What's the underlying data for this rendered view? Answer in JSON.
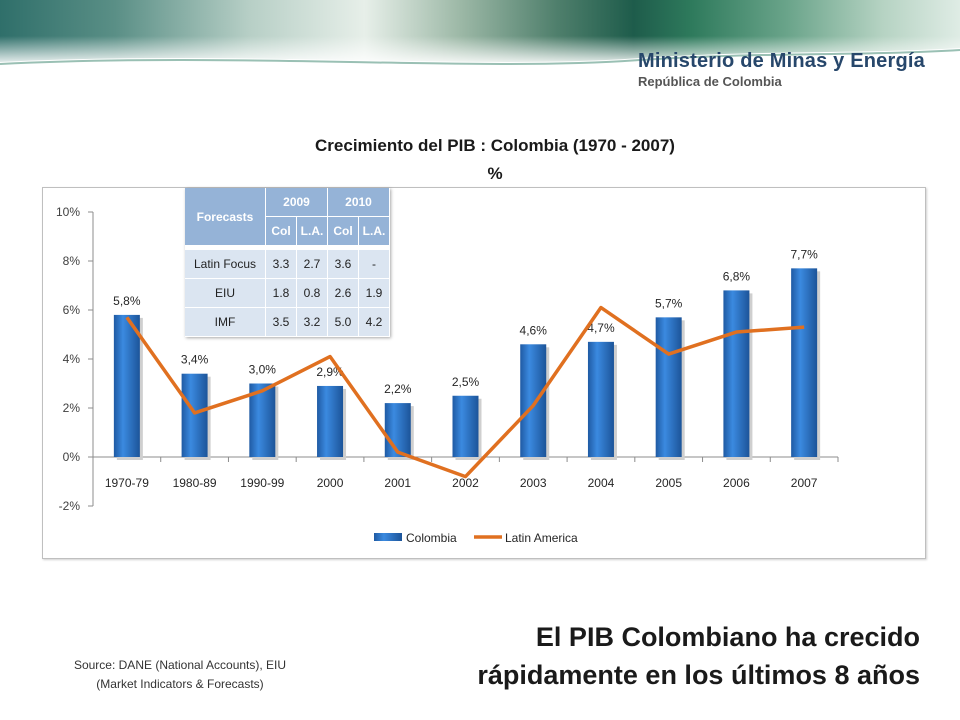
{
  "header": {
    "ministry": "Ministerio de Minas y Energía",
    "country": "República de Colombia"
  },
  "chart_title_line1": "Crecimiento del PIB : Colombia (1970 - 2007)",
  "chart_title_line2": "%",
  "chart_data": {
    "type": "bar",
    "categories": [
      "1970-79",
      "1980-89",
      "1990-99",
      "2000",
      "2001",
      "2002",
      "2003",
      "2004",
      "2005",
      "2006",
      "2007"
    ],
    "ylim": [
      -2,
      10
    ],
    "yticks": [
      -2,
      0,
      2,
      4,
      6,
      8,
      10
    ],
    "ytick_labels": [
      "-2%",
      "0%",
      "2%",
      "4%",
      "6%",
      "8%",
      "10%"
    ],
    "grid": false,
    "legend_position": "bottom",
    "series": [
      {
        "name": "Colombia",
        "type": "bar",
        "color": "#2e75c4",
        "values": [
          5.8,
          3.4,
          3.0,
          2.9,
          2.2,
          2.5,
          4.6,
          4.7,
          5.7,
          6.8,
          7.7
        ],
        "labels": [
          "5,8%",
          "3,4%",
          "3,0%",
          "2,9%",
          "2,2%",
          "2,5%",
          "4,6%",
          "4,7%",
          "5,7%",
          "6,8%",
          "7,7%"
        ]
      },
      {
        "name": "Latin America",
        "type": "line",
        "color": "#e07020",
        "values": [
          5.7,
          1.8,
          2.7,
          4.1,
          0.2,
          -0.8,
          2.1,
          6.1,
          4.2,
          5.1,
          5.3
        ]
      }
    ]
  },
  "forecasts": {
    "corner": "Forecasts",
    "years": [
      "2009",
      "2010"
    ],
    "subheaders": [
      "Col",
      "L.A.",
      "Col",
      "L.A."
    ],
    "rows": [
      {
        "label": "Latin Focus",
        "values": [
          "3.3",
          "2.7",
          "3.6",
          "-"
        ]
      },
      {
        "label": "EIU",
        "values": [
          "1.8",
          "0.8",
          "2.6",
          "1.9"
        ]
      },
      {
        "label": "IMF",
        "values": [
          "3.5",
          "3.2",
          "5.0",
          "4.2"
        ]
      }
    ]
  },
  "source": {
    "line1": "Source: DANE (National Accounts), EIU",
    "line2": "(Market Indicators & Forecasts)"
  },
  "headline": {
    "line1": "El PIB Colombiano ha crecido",
    "line2": "rápidamente en los últimos 8 años"
  }
}
